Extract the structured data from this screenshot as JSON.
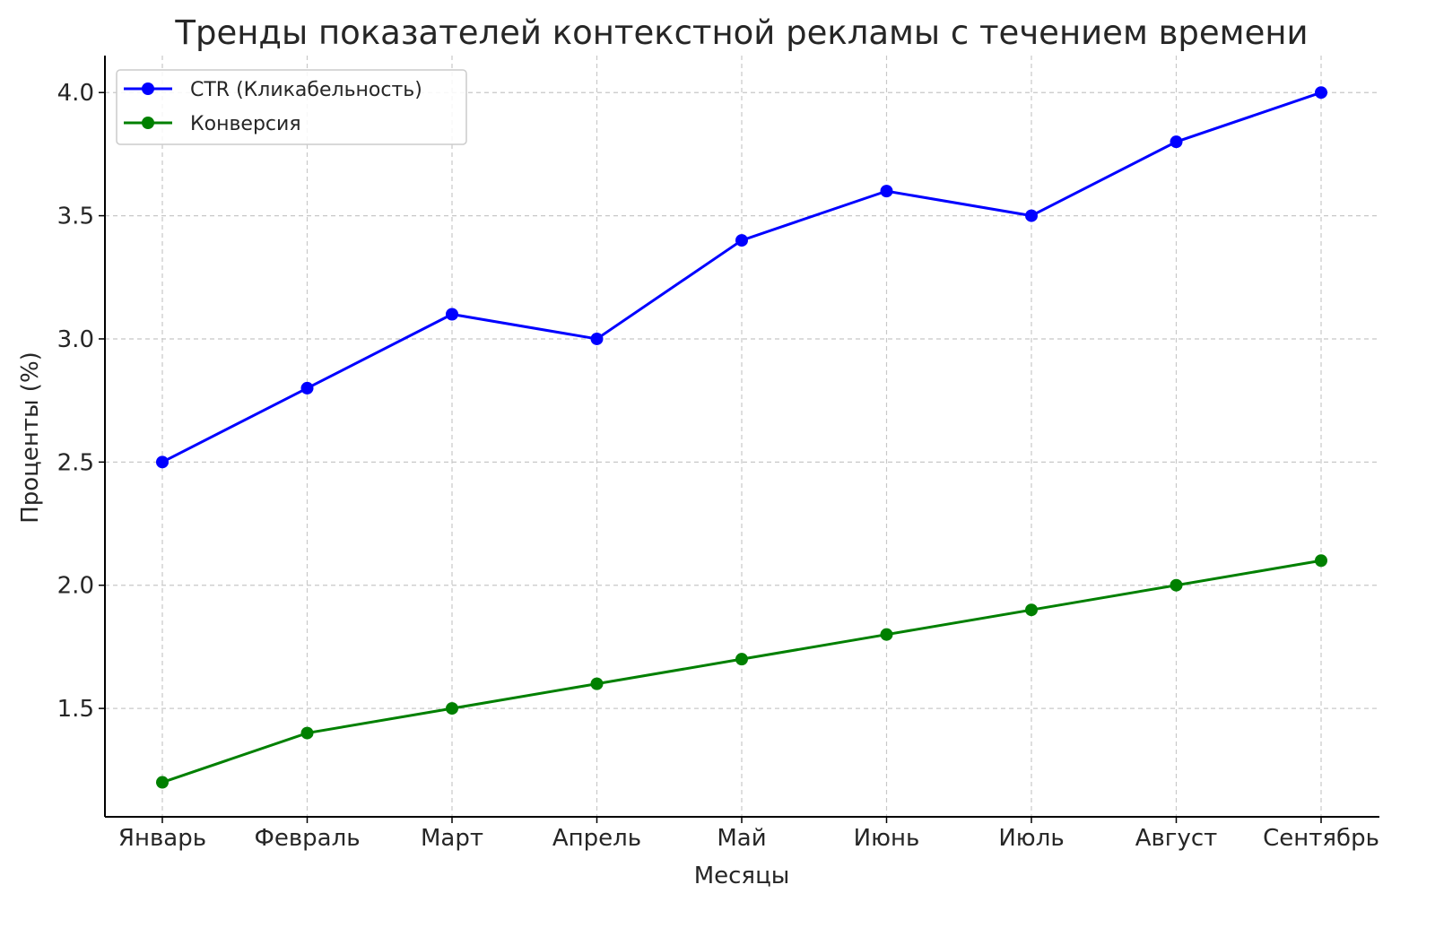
{
  "chart_data": {
    "type": "line",
    "title": "Тренды показателей контекстной рекламы с течением времени",
    "xlabel": "Месяцы",
    "ylabel": "Проценты (%)",
    "categories": [
      "Январь",
      "Февраль",
      "Март",
      "Апрель",
      "Май",
      "Июнь",
      "Июль",
      "Август",
      "Сентябрь"
    ],
    "series": [
      {
        "name": "CTR (Кликабельность)",
        "color": "#0000ff",
        "marker": "circle",
        "values": [
          2.5,
          2.8,
          3.1,
          3.0,
          3.4,
          3.6,
          3.5,
          3.8,
          4.0
        ]
      },
      {
        "name": "Конверсия",
        "color": "#008000",
        "marker": "circle",
        "values": [
          1.2,
          1.4,
          1.5,
          1.6,
          1.7,
          1.8,
          1.9,
          2.0,
          2.1
        ]
      }
    ],
    "ylim": [
      1.06,
      4.15
    ],
    "yticks": [
      "1.5",
      "2.0",
      "2.5",
      "3.0",
      "3.5",
      "4.0"
    ],
    "grid": true,
    "grid_style": "dashed",
    "legend_position": "top-left"
  }
}
